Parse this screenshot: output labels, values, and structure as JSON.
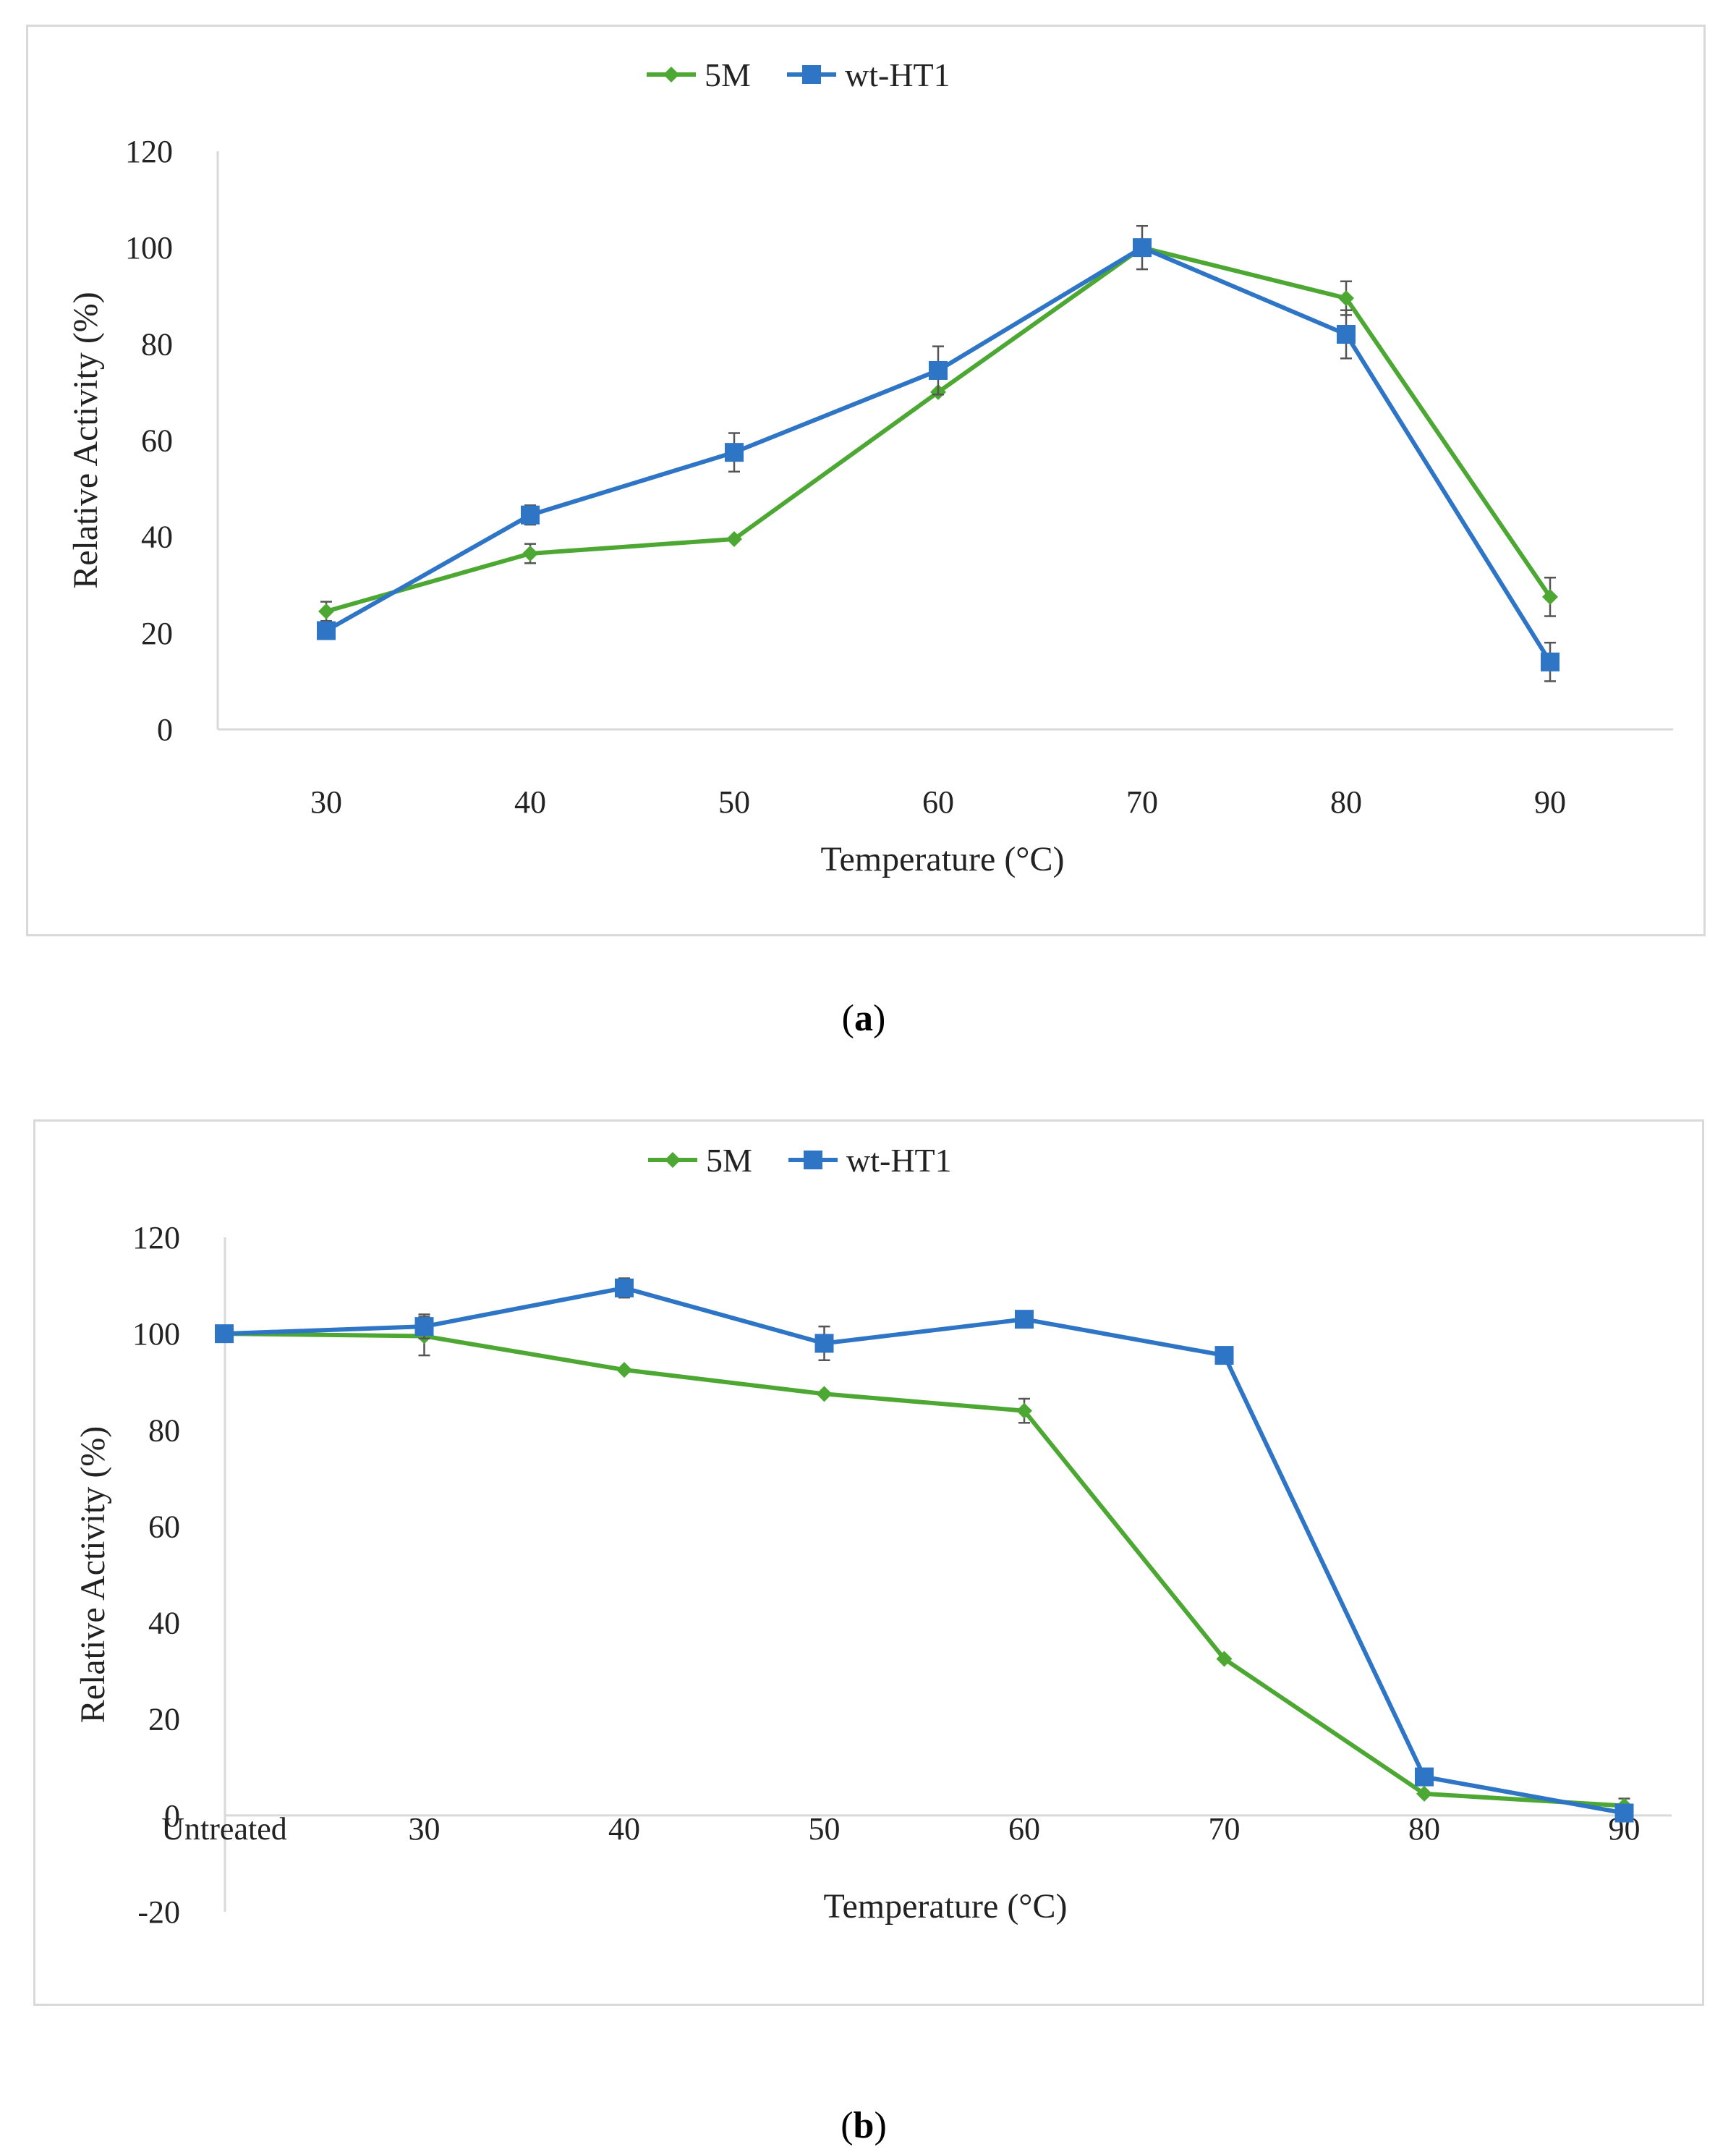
{
  "chart_data": [
    {
      "type": "line",
      "panel": "a",
      "xlabel": "Temperature (°C)",
      "ylabel": "Relative Activity (%)",
      "categories": [
        "30",
        "40",
        "50",
        "60",
        "70",
        "80",
        "90"
      ],
      "ylim": [
        0,
        120
      ],
      "yticks": [
        0,
        20,
        40,
        60,
        80,
        100,
        120
      ],
      "grid": false,
      "legend": "top-center",
      "series": [
        {
          "name": "5M",
          "marker": "diamond",
          "color": "#4ca832",
          "values": [
            24.5,
            36.5,
            39.5,
            70,
            100,
            89.5,
            27.5
          ],
          "errors": [
            2,
            2,
            0.5,
            0.5,
            0.5,
            3.5,
            4
          ]
        },
        {
          "name": "wt-HT1",
          "marker": "square",
          "color": "#2e75c6",
          "values": [
            20.5,
            44.5,
            57.5,
            74.5,
            100,
            82,
            14
          ],
          "errors": [
            1,
            2,
            4,
            5,
            4.5,
            5,
            4
          ]
        }
      ]
    },
    {
      "type": "line",
      "panel": "b",
      "xlabel": "Temperature (°C)",
      "ylabel": "Relative Activity (%)",
      "categories": [
        "Untreated",
        "30",
        "40",
        "50",
        "60",
        "70",
        "80",
        "90"
      ],
      "ylim": [
        -20,
        120
      ],
      "yticks": [
        -20,
        0,
        20,
        40,
        60,
        80,
        100,
        120
      ],
      "grid": false,
      "legend": "top-center",
      "series": [
        {
          "name": "5M",
          "marker": "diamond",
          "color": "#4ca832",
          "values": [
            100,
            99.5,
            92.5,
            87.5,
            84,
            32.5,
            4.5,
            2
          ],
          "errors": [
            0.5,
            4,
            0.5,
            0.5,
            2.5,
            0.5,
            0.5,
            1.5
          ]
        },
        {
          "name": "wt-HT1",
          "marker": "square",
          "color": "#2e75c6",
          "values": [
            100,
            101.5,
            109.5,
            98,
            103,
            95.5,
            8,
            0.5
          ],
          "errors": [
            0.5,
            2.5,
            2,
            3.5,
            1,
            1.5,
            1,
            1
          ]
        }
      ]
    }
  ],
  "captions": {
    "a": "a",
    "b": "b"
  }
}
